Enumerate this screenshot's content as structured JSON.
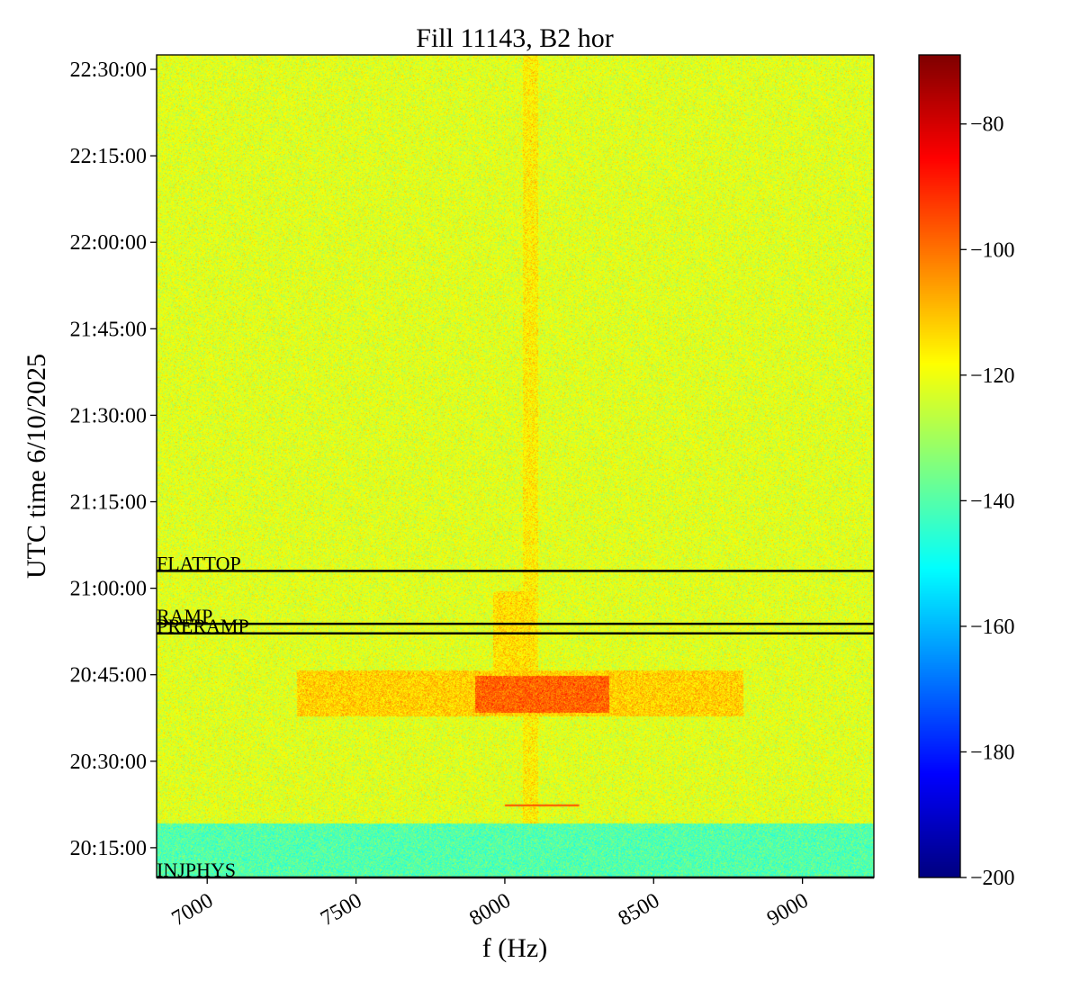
{
  "chart_data": {
    "type": "heatmap",
    "title": "Fill 11143, B2 hor",
    "xlabel": "f (Hz)",
    "ylabel": "UTC time 6/10/2025",
    "xlim": [
      6830,
      9240
    ],
    "ylim": [
      "20:09:50",
      "22:32:30"
    ],
    "x_ticks": [
      7000,
      7500,
      8000,
      8500,
      9000
    ],
    "x_tick_labels": [
      "7000",
      "7500",
      "8000",
      "8500",
      "9000"
    ],
    "y_ticks": [
      "20:15:00",
      "20:30:00",
      "20:45:00",
      "21:00:00",
      "21:15:00",
      "21:30:00",
      "21:45:00",
      "22:00:00",
      "22:15:00",
      "22:30:00"
    ],
    "colorbar": {
      "colormap": "jet",
      "range": [
        -200,
        -69
      ],
      "ticks": [
        -80,
        -100,
        -120,
        -140,
        -160,
        -180,
        -200
      ],
      "tick_labels": [
        "−80",
        "−100",
        "−120",
        "−140",
        "−160",
        "−180",
        "−200"
      ]
    },
    "background_level": -122,
    "regions": [
      {
        "t_start": "20:09:50",
        "t_end": "20:19:15",
        "f_start": 6830,
        "f_end": 9240,
        "level": -140
      },
      {
        "t_start": "20:37:50",
        "t_end": "20:45:50",
        "f_start": 7300,
        "f_end": 8800,
        "level": -112
      },
      {
        "t_start": "20:38:30",
        "t_end": "20:44:50",
        "f_start": 7900,
        "f_end": 8350,
        "level": -98
      },
      {
        "t_start": "20:45:50",
        "t_end": "20:59:30",
        "f_start": 7960,
        "f_end": 8100,
        "level": -114
      },
      {
        "t_start": "20:19:15",
        "t_end": "22:32:30",
        "f_start": 8060,
        "f_end": 8110,
        "level": -116
      }
    ],
    "lines": [
      {
        "t": "20:22:30",
        "f_start": 8000,
        "f_end": 8250,
        "level": -95
      }
    ],
    "annotations": [
      {
        "label": "FLATTOP",
        "t": "21:03:00"
      },
      {
        "label": "RAMP",
        "t": "20:53:50"
      },
      {
        "label": "PRERAMP",
        "t": "20:52:10"
      },
      {
        "label": "INJPHYS",
        "t": "20:09:50"
      }
    ],
    "grid": false
  }
}
